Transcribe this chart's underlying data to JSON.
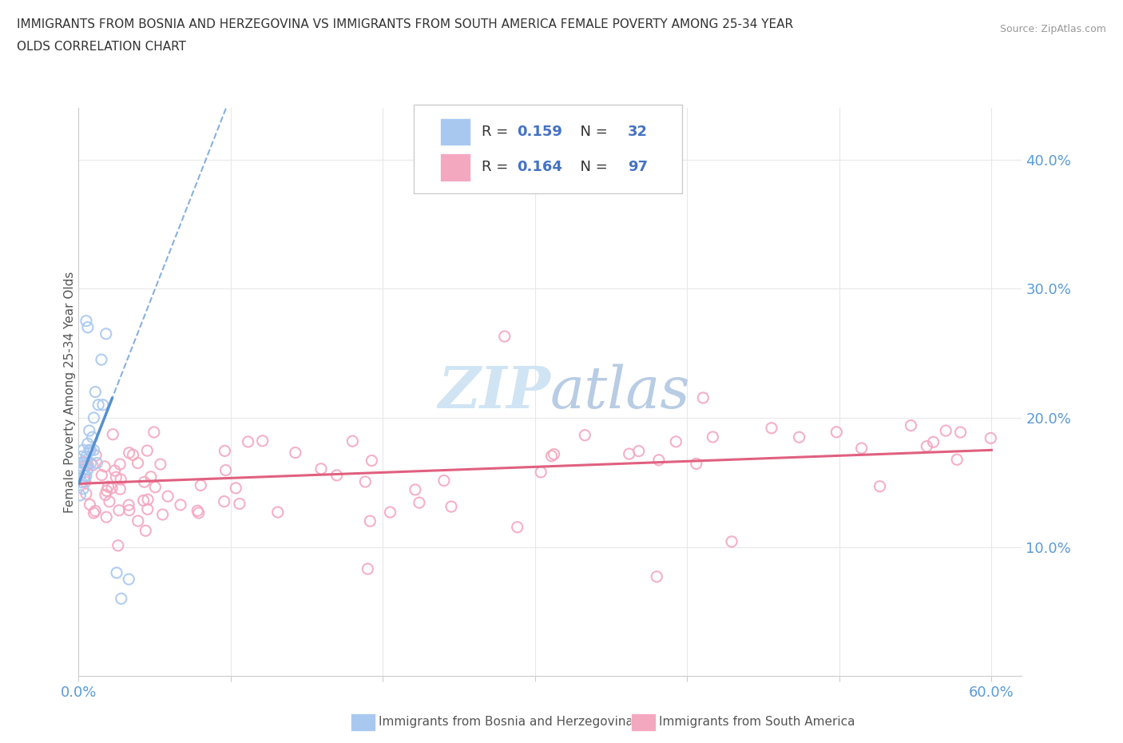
{
  "title_line1": "IMMIGRANTS FROM BOSNIA AND HERZEGOVINA VS IMMIGRANTS FROM SOUTH AMERICA FEMALE POVERTY AMONG 25-34 YEAR",
  "title_line2": "OLDS CORRELATION CHART",
  "source_text": "Source: ZipAtlas.com",
  "ylabel": "Female Poverty Among 25-34 Year Olds",
  "xlim": [
    0.0,
    0.62
  ],
  "ylim": [
    0.0,
    0.44
  ],
  "color_bosnia": "#a8c8f0",
  "color_south_america": "#f4a8c0",
  "trendline_bosnia_color": "#5590d0",
  "trendline_sa_color": "#e06080",
  "legend_r_bosnia_val": "0.159",
  "legend_n_bosnia_val": "32",
  "legend_r_sa_val": "0.164",
  "legend_n_sa_val": "97",
  "legend_text_color": "#4472c4",
  "watermark_color": "#d0e4f4",
  "grid_color": "#e8e8e8",
  "tick_color": "#5b9bd5",
  "ylabel_color": "#555555",
  "title_color": "#333333",
  "source_color": "#999999",
  "bottom_legend_color": "#555555"
}
